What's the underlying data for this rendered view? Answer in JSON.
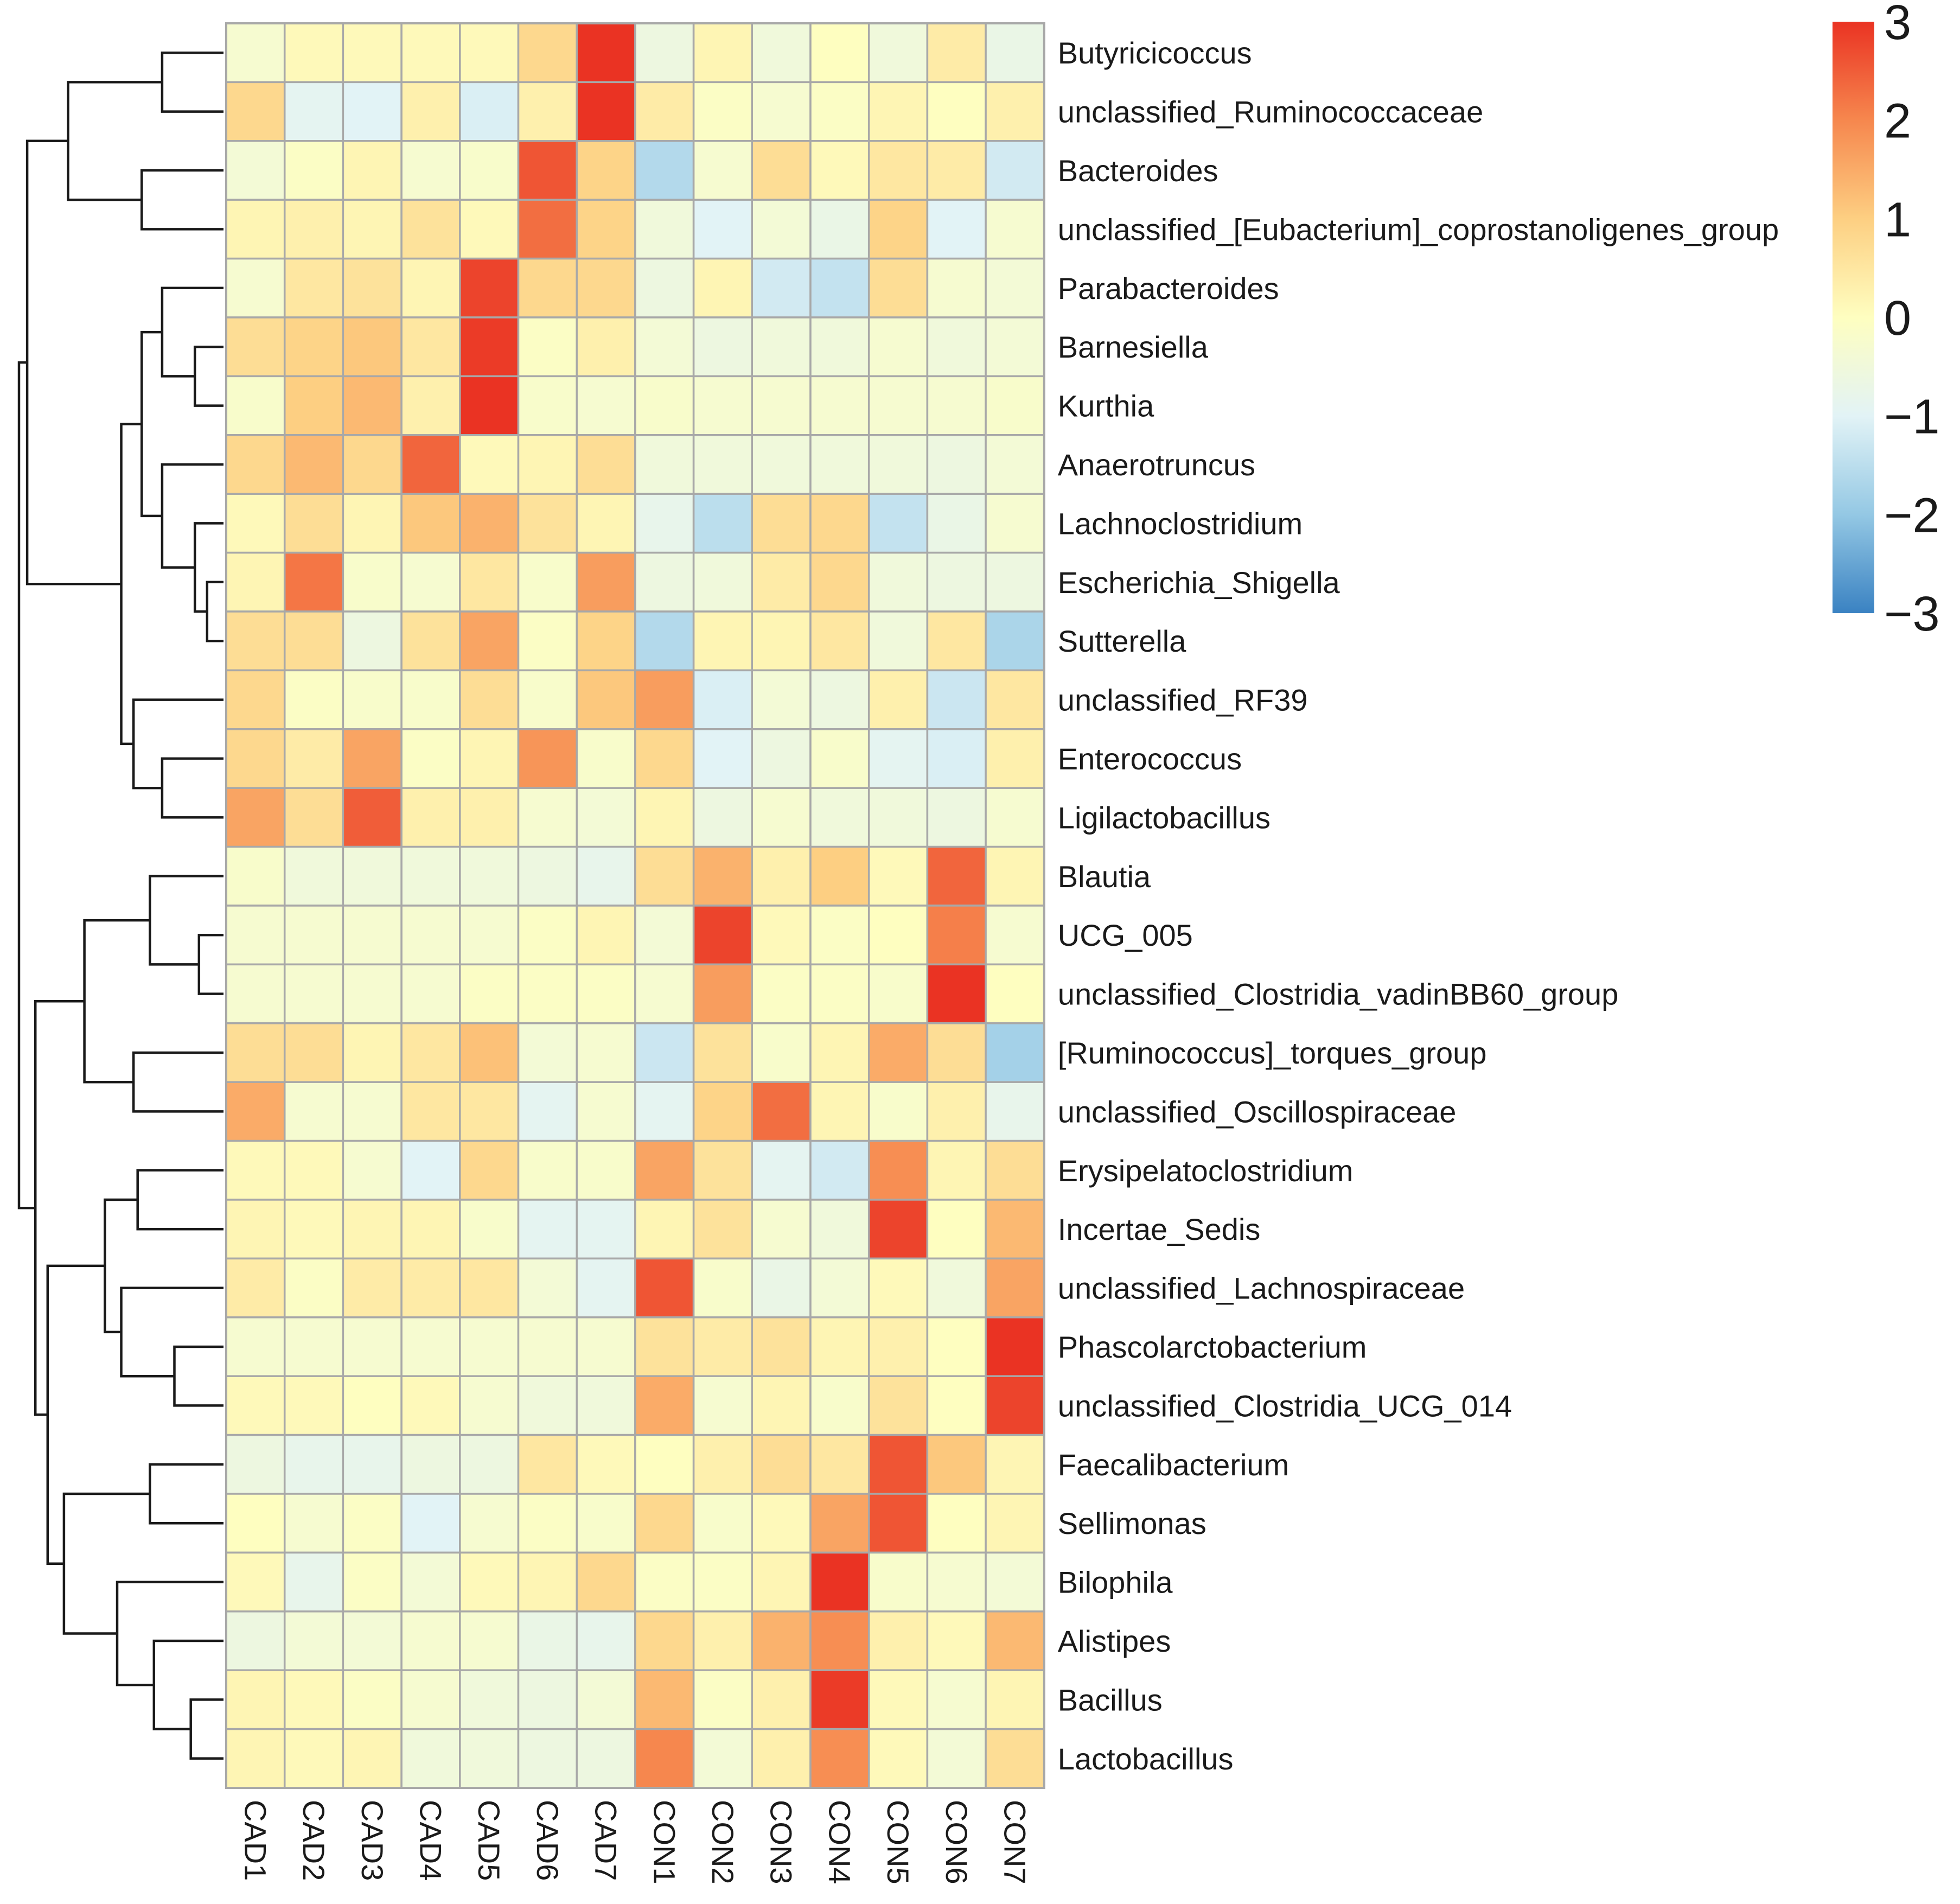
{
  "chart_data": {
    "type": "heatmap",
    "title": "",
    "xlabel": "",
    "ylabel": "",
    "columns": [
      "CAD1",
      "CAD2",
      "CAD3",
      "CAD4",
      "CAD5",
      "CAD6",
      "CAD7",
      "CON1",
      "CON2",
      "CON3",
      "CON4",
      "CON5",
      "CON6",
      "CON7"
    ],
    "rows": [
      "Butyricicoccus",
      "unclassified_Ruminococcaceae",
      "Bacteroides",
      "unclassified_[Eubacterium]_coprostanoligenes_group",
      "Parabacteroides",
      "Barnesiella",
      "Kurthia",
      "Anaerotruncus",
      "Lachnoclostridium",
      "Escherichia_Shigella",
      "Sutterella",
      "unclassified_RF39",
      "Enterococcus",
      "Ligilactobacillus",
      "Blautia",
      "UCG_005",
      "unclassified_Clostridia_vadinBB60_group",
      "[Ruminococcus]_torques_group",
      "unclassified_Oscillospiraceae",
      "Erysipelatoclostridium",
      "Incertae_Sedis",
      "unclassified_Lachnospiraceae",
      "Phascolarctobacterium",
      "unclassified_Clostridia_UCG_014",
      "Faecalibacterium",
      "Sellimonas",
      "Bilophila",
      "Alistipes",
      "Bacillus",
      "Lactobacillus"
    ],
    "values": [
      [
        -0.3,
        0.1,
        0.1,
        0.1,
        0.1,
        0.8,
        3.1,
        -0.6,
        0.2,
        -0.5,
        0.0,
        -0.5,
        0.4,
        -0.7
      ],
      [
        0.8,
        -0.9,
        -1.0,
        0.3,
        -1.1,
        0.3,
        3.0,
        0.4,
        -0.1,
        -0.3,
        -0.1,
        0.2,
        0.0,
        0.3
      ],
      [
        -0.4,
        -0.1,
        0.2,
        -0.3,
        -0.2,
        2.6,
        0.9,
        -1.6,
        -0.3,
        0.7,
        0.1,
        0.5,
        0.4,
        -1.2
      ],
      [
        0.2,
        0.3,
        0.2,
        0.6,
        0.1,
        2.3,
        0.9,
        -0.5,
        -1.0,
        -0.4,
        -0.7,
        0.9,
        -1.0,
        -0.3
      ],
      [
        -0.3,
        0.5,
        0.6,
        0.2,
        2.8,
        0.8,
        0.8,
        -0.6,
        0.2,
        -1.2,
        -1.4,
        0.7,
        -0.3,
        -0.4
      ],
      [
        0.7,
        0.9,
        1.1,
        0.5,
        2.9,
        -0.1,
        0.3,
        -0.4,
        -0.6,
        -0.5,
        -0.5,
        -0.3,
        -0.5,
        -0.4
      ],
      [
        -0.2,
        1.0,
        1.3,
        0.3,
        3.0,
        -0.2,
        -0.3,
        -0.2,
        -0.3,
        -0.3,
        -0.3,
        -0.3,
        -0.3,
        -0.2
      ],
      [
        0.8,
        1.3,
        0.8,
        2.4,
        0.1,
        0.2,
        0.7,
        -0.5,
        -0.5,
        -0.5,
        -0.5,
        -0.5,
        -0.6,
        -0.4
      ],
      [
        0.1,
        0.7,
        0.2,
        1.1,
        1.4,
        0.6,
        0.2,
        -0.8,
        -1.5,
        0.7,
        0.8,
        -1.4,
        -0.7,
        -0.3
      ],
      [
        0.2,
        2.2,
        -0.2,
        -0.3,
        0.5,
        -0.2,
        1.7,
        -0.6,
        -0.5,
        0.4,
        0.8,
        -0.5,
        -0.6,
        -0.6
      ],
      [
        0.7,
        0.7,
        -0.6,
        0.6,
        1.6,
        -0.1,
        0.9,
        -1.6,
        0.2,
        0.2,
        0.5,
        -0.5,
        0.5,
        -1.7
      ],
      [
        0.8,
        -0.1,
        -0.2,
        -0.2,
        0.7,
        -0.2,
        1.1,
        1.7,
        -1.1,
        -0.4,
        -0.6,
        0.3,
        -1.3,
        0.5
      ],
      [
        0.8,
        0.4,
        1.6,
        -0.1,
        0.2,
        1.8,
        -0.2,
        0.8,
        -1.0,
        -0.6,
        -0.2,
        -0.9,
        -1.1,
        0.3
      ],
      [
        1.6,
        0.7,
        2.5,
        0.3,
        0.3,
        -0.3,
        -0.4,
        0.2,
        -0.6,
        -0.3,
        -0.5,
        -0.5,
        -0.6,
        -0.3
      ],
      [
        -0.2,
        -0.5,
        -0.5,
        -0.5,
        -0.5,
        -0.6,
        -0.8,
        0.7,
        1.4,
        0.3,
        1.0,
        0.1,
        2.4,
        0.2
      ],
      [
        -0.3,
        -0.3,
        -0.3,
        -0.3,
        -0.3,
        -0.1,
        0.2,
        -0.4,
        2.8,
        0.1,
        -0.1,
        0.0,
        2.1,
        -0.3
      ],
      [
        -0.3,
        -0.3,
        -0.3,
        -0.3,
        -0.1,
        -0.1,
        -0.1,
        -0.3,
        1.7,
        -0.1,
        -0.1,
        -0.2,
        3.0,
        0.0
      ],
      [
        0.7,
        0.7,
        0.2,
        0.5,
        1.2,
        -0.4,
        -0.3,
        -1.3,
        0.6,
        -0.2,
        0.2,
        1.5,
        0.7,
        -1.8
      ],
      [
        1.5,
        -0.3,
        -0.3,
        0.5,
        0.5,
        -0.9,
        -0.3,
        -0.9,
        0.9,
        2.3,
        0.2,
        -0.2,
        0.3,
        -0.8
      ],
      [
        0.1,
        0.1,
        -0.3,
        -1.0,
        0.8,
        -0.2,
        -0.2,
        1.6,
        0.6,
        -0.9,
        -1.2,
        1.9,
        0.2,
        0.7
      ],
      [
        0.2,
        0.1,
        0.2,
        0.2,
        -0.2,
        -0.9,
        -0.9,
        0.2,
        0.6,
        -0.3,
        -0.5,
        2.8,
        0.0,
        1.3
      ],
      [
        0.4,
        -0.1,
        0.4,
        0.4,
        0.5,
        -0.4,
        -0.9,
        2.6,
        -0.2,
        -0.7,
        -0.4,
        0.1,
        -0.5,
        1.6
      ],
      [
        -0.3,
        -0.3,
        -0.3,
        -0.3,
        -0.3,
        -0.3,
        -0.3,
        0.6,
        0.4,
        0.6,
        0.2,
        0.3,
        0.0,
        3.1
      ],
      [
        0.1,
        0.1,
        0.0,
        0.1,
        -0.3,
        -0.5,
        -0.5,
        1.5,
        -0.3,
        0.2,
        -0.2,
        0.6,
        0.0,
        2.8
      ],
      [
        -0.6,
        -0.8,
        -0.8,
        -0.6,
        -0.6,
        0.5,
        0.1,
        0.0,
        0.3,
        0.7,
        0.5,
        2.6,
        1.1,
        0.2
      ],
      [
        0.0,
        -0.3,
        -0.1,
        -1.0,
        -0.3,
        -0.1,
        -0.2,
        0.8,
        -0.2,
        0.1,
        1.6,
        2.6,
        0.0,
        0.2
      ],
      [
        0.1,
        -0.8,
        -0.1,
        -0.4,
        0.1,
        0.2,
        0.8,
        -0.1,
        -0.1,
        0.2,
        3.2,
        -0.2,
        -0.3,
        -0.4
      ],
      [
        -0.6,
        -0.4,
        -0.4,
        -0.3,
        -0.3,
        -0.7,
        -0.8,
        0.8,
        0.3,
        1.4,
        1.9,
        0.3,
        0.1,
        1.3
      ],
      [
        0.2,
        0.1,
        -0.1,
        -0.3,
        -0.5,
        -0.6,
        -0.4,
        1.3,
        -0.1,
        0.3,
        2.9,
        0.1,
        -0.3,
        0.2
      ],
      [
        0.2,
        0.1,
        0.2,
        -0.5,
        -0.5,
        -0.6,
        -0.6,
        2.0,
        -0.4,
        0.3,
        1.9,
        0.1,
        -0.4,
        0.7
      ]
    ],
    "colorbar": {
      "range": [
        -3,
        3
      ],
      "tick_labels": [
        "3",
        "2",
        "1",
        "0",
        "−1",
        "−2",
        "−3"
      ],
      "tick_values": [
        3,
        2,
        1,
        0,
        -1,
        -2,
        -3
      ],
      "colors": [
        "#3a82c2",
        "#94c8e4",
        "#e2f3f6",
        "#fefec0",
        "#fdcf82",
        "#f6874e",
        "#ea3323"
      ],
      "color_positions": [
        -3,
        -2,
        -1,
        0,
        1,
        2,
        3
      ]
    },
    "cell_border_color": "#a8a8a8",
    "dendrogram_leaf_order": [
      0,
      1,
      2,
      3,
      4,
      5,
      6,
      7,
      8,
      9,
      10,
      11,
      12,
      13,
      14,
      15,
      16,
      17,
      18,
      19,
      20,
      21,
      22,
      23,
      24,
      25,
      26,
      27,
      28,
      29
    ],
    "dendrogram_merges": [
      {
        "a": [
          0
        ],
        "b": [
          1
        ],
        "h": 0.15
      },
      {
        "a": [
          2
        ],
        "b": [
          3
        ],
        "h": 0.2
      },
      {
        "a": [
          0,
          1
        ],
        "b": [
          2,
          3
        ],
        "h": 0.38
      },
      {
        "a": [
          5
        ],
        "b": [
          6
        ],
        "h": 0.07
      },
      {
        "a": [
          4
        ],
        "b": [
          5,
          6
        ],
        "h": 0.15
      },
      {
        "a": [
          9
        ],
        "b": [
          10
        ],
        "h": 0.04
      },
      {
        "a": [
          8
        ],
        "b": [
          9,
          10
        ],
        "h": 0.07
      },
      {
        "a": [
          7
        ],
        "b": [
          8,
          9,
          10
        ],
        "h": 0.15
      },
      {
        "a": [
          4,
          5,
          6
        ],
        "b": [
          7,
          8,
          9,
          10
        ],
        "h": 0.2
      },
      {
        "a": [
          12
        ],
        "b": [
          13
        ],
        "h": 0.15
      },
      {
        "a": [
          11
        ],
        "b": [
          12,
          13
        ],
        "h": 0.22
      },
      {
        "a": [
          4,
          5,
          6,
          7,
          8,
          9,
          10
        ],
        "b": [
          11,
          12,
          13
        ],
        "h": 0.25
      },
      {
        "a": [
          0,
          1,
          2,
          3
        ],
        "b": [
          4,
          5,
          6,
          7,
          8,
          9,
          10,
          11,
          12,
          13
        ],
        "h": 0.48
      },
      {
        "a": [
          15
        ],
        "b": [
          16
        ],
        "h": 0.06
      },
      {
        "a": [
          14
        ],
        "b": [
          15,
          16
        ],
        "h": 0.18
      },
      {
        "a": [
          17
        ],
        "b": [
          18
        ],
        "h": 0.22
      },
      {
        "a": [
          14,
          15,
          16
        ],
        "b": [
          17,
          18
        ],
        "h": 0.34
      },
      {
        "a": [
          19
        ],
        "b": [
          20
        ],
        "h": 0.21
      },
      {
        "a": [
          22
        ],
        "b": [
          23
        ],
        "h": 0.12
      },
      {
        "a": [
          21
        ],
        "b": [
          22,
          23
        ],
        "h": 0.25
      },
      {
        "a": [
          19,
          20
        ],
        "b": [
          21,
          22,
          23
        ],
        "h": 0.29
      },
      {
        "a": [
          24
        ],
        "b": [
          25
        ],
        "h": 0.18
      },
      {
        "a": [
          28
        ],
        "b": [
          29
        ],
        "h": 0.08
      },
      {
        "a": [
          27
        ],
        "b": [
          28,
          29
        ],
        "h": 0.17
      },
      {
        "a": [
          26
        ],
        "b": [
          27,
          28,
          29
        ],
        "h": 0.26
      },
      {
        "a": [
          24,
          25
        ],
        "b": [
          26,
          27,
          28,
          29
        ],
        "h": 0.39
      },
      {
        "a": [
          19,
          20,
          21,
          22,
          23
        ],
        "b": [
          24,
          25,
          26,
          27,
          28,
          29
        ],
        "h": 0.43
      },
      {
        "a": [
          14,
          15,
          16,
          17,
          18
        ],
        "b": [
          19,
          20,
          21,
          22,
          23,
          24,
          25,
          26,
          27,
          28,
          29
        ],
        "h": 0.46
      },
      {
        "a": [
          0,
          1,
          2,
          3,
          4,
          5,
          6,
          7,
          8,
          9,
          10,
          11,
          12,
          13
        ],
        "b": [
          14,
          15,
          16,
          17,
          18,
          19,
          20,
          21,
          22,
          23,
          24,
          25,
          26,
          27,
          28,
          29
        ],
        "h": 0.5
      }
    ]
  }
}
